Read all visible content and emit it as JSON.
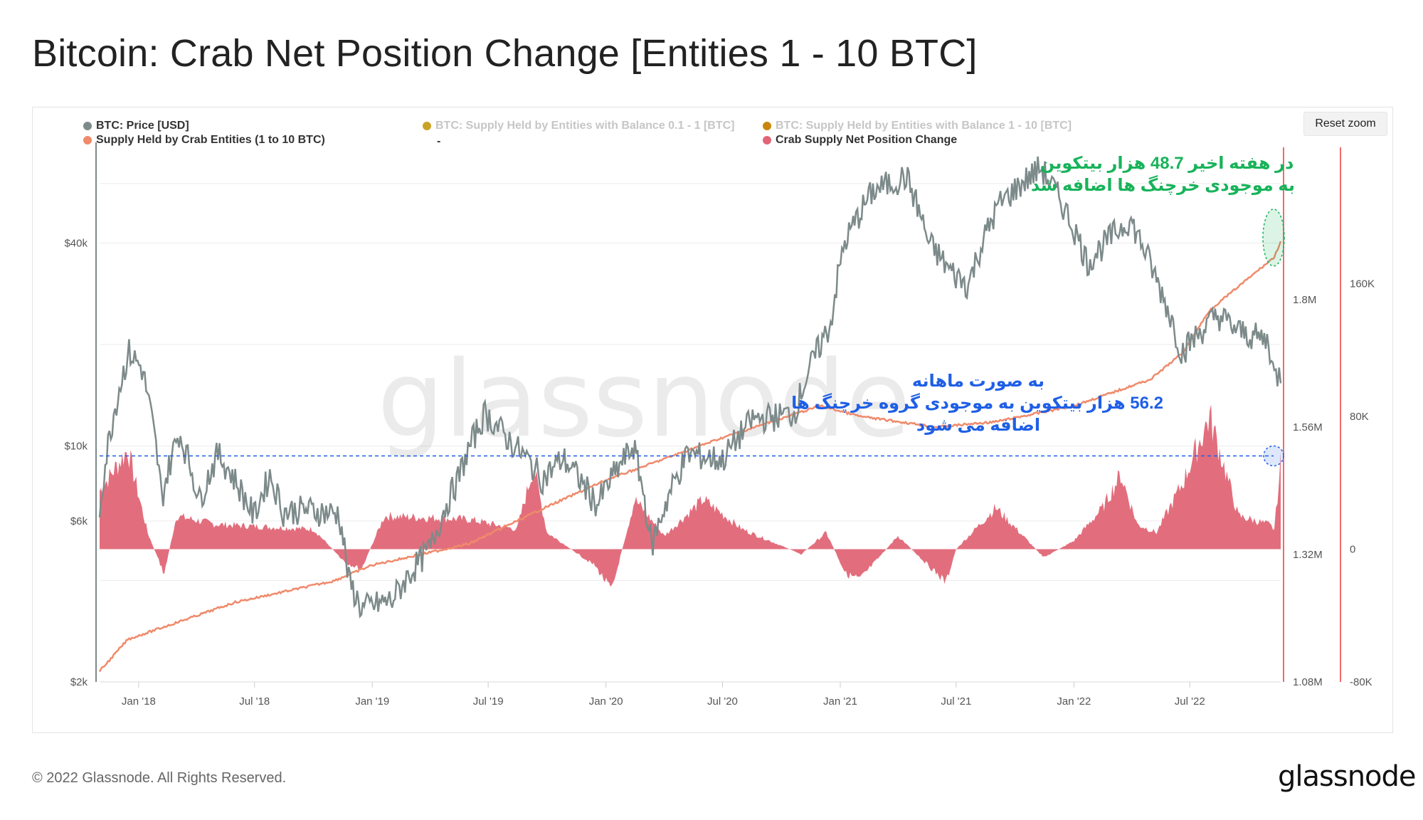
{
  "title": "Bitcoin: Crab Net Position Change [Entities 1 - 10 BTC]",
  "reset_zoom": "Reset zoom",
  "legend": [
    {
      "label": "BTC: Price [USD]",
      "color": "#7d8a8a",
      "muted": false
    },
    {
      "label": "BTC: Supply Held by Entities with Balance 0.1 - 1 [BTC]",
      "color": "#c9a227",
      "muted": true
    },
    {
      "label": "BTC: Supply Held by Entities with Balance 1 - 10 [BTC]",
      "color": "#c8860d",
      "muted": true
    },
    {
      "label": "Supply Held by Crab Entities (1 to 10 BTC)",
      "color": "#f08a6b",
      "muted": false
    },
    {
      "label": "Crab Supply Net Position Change",
      "color": "#e06676",
      "muted": false
    }
  ],
  "legend_dash": "-",
  "watermark": "glassnode",
  "annotations": {
    "green_line1": "در هفته اخیر  48.7 هزار بیتکوین",
    "green_line2": "به موجودی خرچنگ ها اضافه شد",
    "blue_line1": "به صورت ماهانه",
    "blue_line2": "56.2 هزار بیتکوین به موجودی گروه خرچنگ ها",
    "blue_line3": "اضافه می شود"
  },
  "footer": {
    "copyright": "© 2022 Glassnode. All Rights Reserved.",
    "brand": "glassnode"
  },
  "colors": {
    "price": "#7d8a8a",
    "supply": "#f08a6b",
    "net_change": "#e06676",
    "green": "#17b35a",
    "blue": "#1f5fe6",
    "marker": "#f06a6a"
  },
  "chart_data": {
    "type": "line",
    "x_ticks": [
      "Jan '18",
      "Jul '18",
      "Jan '19",
      "Jul '19",
      "Jan '20",
      "Jul '20",
      "Jan '21",
      "Jul '21",
      "Jan '22",
      "Jul '22"
    ],
    "x_range": [
      "2017-11-01",
      "2022-11-20"
    ],
    "y_left": {
      "scale": "log",
      "ticks": [
        "$2k",
        "$6k",
        "$10k",
        "$40k"
      ],
      "tick_values": [
        2000,
        6000,
        10000,
        40000
      ],
      "range": [
        2000,
        75000
      ]
    },
    "y_mid": {
      "ticks": [
        "1.08M",
        "1.32M",
        "1.56M",
        "1.8M"
      ],
      "tick_values": [
        1080000,
        1320000,
        1560000,
        1800000
      ],
      "range": [
        1080000,
        2080000
      ]
    },
    "y_right": {
      "ticks": [
        "-80K",
        "0",
        "80K",
        "160K"
      ],
      "tick_values": [
        -80000,
        0,
        80000,
        160000
      ],
      "range": [
        -80000,
        240000
      ]
    },
    "reference_line_right_axis": 56200,
    "series": [
      {
        "name": "BTC: Price [USD]",
        "axis": "left",
        "x": [
          "2017-11-01",
          "2017-12-17",
          "2018-01-06",
          "2018-02-06",
          "2018-03-05",
          "2018-04-06",
          "2018-05-05",
          "2018-06-30",
          "2018-07-25",
          "2018-08-15",
          "2018-09-15",
          "2018-11-10",
          "2018-11-25",
          "2018-12-15",
          "2019-02-01",
          "2019-04-02",
          "2019-05-15",
          "2019-06-26",
          "2019-08-01",
          "2019-09-24",
          "2019-10-26",
          "2019-12-18",
          "2020-02-13",
          "2020-03-12",
          "2020-05-08",
          "2020-07-01",
          "2020-08-17",
          "2020-10-21",
          "2020-12-17",
          "2021-01-08",
          "2021-02-21",
          "2021-04-14",
          "2021-05-19",
          "2021-06-22",
          "2021-07-20",
          "2021-09-06",
          "2021-11-10",
          "2022-01-22",
          "2022-03-29",
          "2022-05-10",
          "2022-06-18",
          "2022-08-14",
          "2022-09-13",
          "2022-11-01",
          "2022-11-10",
          "2022-11-20"
        ],
        "y": [
          6500,
          19000,
          17000,
          7000,
          11000,
          6900,
          9500,
          6200,
          8200,
          6400,
          6500,
          6300,
          4000,
          3300,
          3500,
          5000,
          8000,
          12500,
          10500,
          8000,
          9200,
          6700,
          10000,
          5000,
          9500,
          9100,
          12000,
          12500,
          23000,
          40000,
          57000,
          63000,
          40000,
          33000,
          30000,
          52000,
          67000,
          35000,
          47000,
          31000,
          19000,
          24500,
          22000,
          20500,
          16000,
          16500
        ]
      },
      {
        "name": "Supply Held by Crab Entities (1 to 10 BTC)",
        "axis": "mid",
        "x": [
          "2017-11-01",
          "2017-12-15",
          "2018-02-01",
          "2018-06-01",
          "2018-11-01",
          "2019-01-01",
          "2019-06-01",
          "2019-10-01",
          "2020-01-01",
          "2020-04-01",
          "2020-07-01",
          "2020-12-01",
          "2021-02-01",
          "2021-06-01",
          "2021-09-01",
          "2022-01-01",
          "2022-05-01",
          "2022-06-20",
          "2022-08-01",
          "2022-11-10",
          "2022-11-20"
        ],
        "y": [
          1100000,
          1160000,
          1180000,
          1230000,
          1270000,
          1300000,
          1340000,
          1410000,
          1460000,
          1500000,
          1540000,
          1600000,
          1580000,
          1560000,
          1570000,
          1600000,
          1650000,
          1700000,
          1780000,
          1880000,
          1910000
        ]
      },
      {
        "name": "Crab Supply Net Position Change",
        "axis": "right",
        "x": [
          "2017-11-01",
          "2017-12-15",
          "2018-01-15",
          "2018-02-10",
          "2018-03-01",
          "2018-05-01",
          "2018-10-01",
          "2018-11-20",
          "2018-12-15",
          "2019-01-20",
          "2019-06-01",
          "2019-08-15",
          "2019-09-10",
          "2019-10-01",
          "2019-12-15",
          "2020-01-10",
          "2020-02-15",
          "2020-04-01",
          "2020-06-01",
          "2020-08-01",
          "2020-11-01",
          "2020-12-10",
          "2021-01-10",
          "2021-02-01",
          "2021-04-01",
          "2021-06-15",
          "2021-07-01",
          "2021-09-01",
          "2021-11-15",
          "2022-01-01",
          "2022-02-15",
          "2022-03-15",
          "2022-04-10",
          "2022-05-10",
          "2022-06-20",
          "2022-08-01",
          "2022-09-15",
          "2022-11-01",
          "2022-11-10",
          "2022-11-20"
        ],
        "y": [
          35000,
          60000,
          10000,
          -15000,
          20000,
          15000,
          12000,
          -8000,
          -12000,
          20000,
          18000,
          12000,
          50000,
          10000,
          -10000,
          -25000,
          30000,
          8000,
          30000,
          12000,
          -3000,
          10000,
          -15000,
          -18000,
          8000,
          -20000,
          0,
          25000,
          -5000,
          5000,
          25000,
          45000,
          15000,
          10000,
          40000,
          80000,
          20000,
          15000,
          12000,
          52000
        ]
      }
    ]
  }
}
